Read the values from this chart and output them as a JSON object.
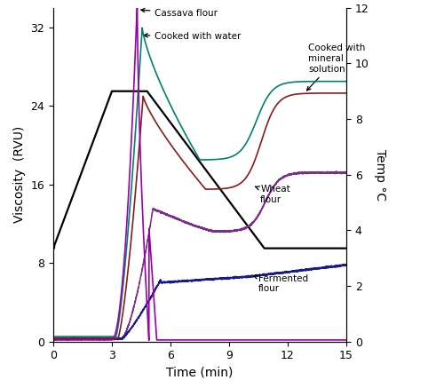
{
  "title": "",
  "xlabel": "Time (min)",
  "ylabel_left": "Viscosity  (RVU)",
  "ylabel_right": "Temp °C",
  "xlim": [
    0,
    15
  ],
  "ylim_left": [
    0,
    34
  ],
  "ylim_right": [
    0,
    12
  ],
  "yticks_left": [
    0,
    8,
    16,
    24,
    32
  ],
  "yticks_right": [
    0,
    2,
    4,
    6,
    8,
    10,
    12
  ],
  "xticks": [
    0,
    3,
    6,
    9,
    12,
    15
  ],
  "background_color": "#ffffff",
  "line_colors": {
    "cassava_flour": "#9900aa",
    "cooked_water": "#008070",
    "cooked_mineral": "#8b1a1a",
    "wheat_flour": "#7b2d8b",
    "fermented_flour": "#1a1a8b",
    "temperature": "#000000"
  }
}
